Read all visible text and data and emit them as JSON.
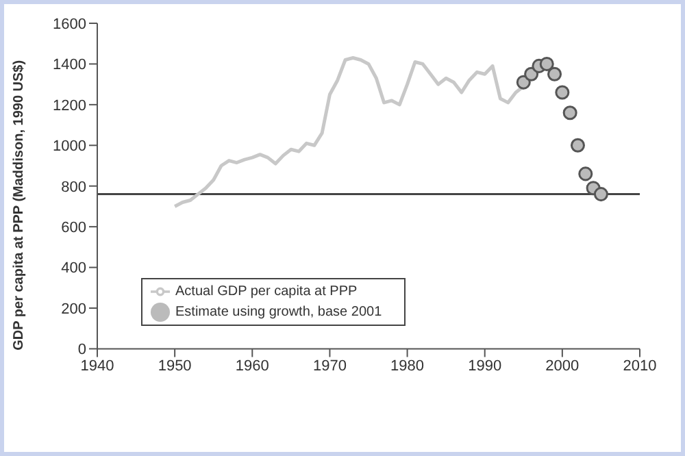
{
  "chart_data": {
    "type": "line",
    "ylabel": "GDP per capita at PPP (Maddison, 1990 US$)",
    "xlim": [
      1940,
      2010
    ],
    "xticks": [
      1940,
      1950,
      1960,
      1970,
      1980,
      1990,
      2000,
      2010
    ],
    "ylim": [
      0,
      1600
    ],
    "yticks": [
      0,
      200,
      400,
      600,
      800,
      1000,
      1200,
      1400,
      1600
    ],
    "grid": false,
    "legend": "bottom left",
    "ref_lines": [
      {
        "axis": "y",
        "value": 760,
        "color": "#444444"
      }
    ],
    "series": [
      {
        "name": "Actual GDP per capita at PPP",
        "type": "line",
        "color": "#c8c8c8",
        "marker": "none",
        "x": [
          1950,
          1951,
          1952,
          1953,
          1954,
          1955,
          1956,
          1957,
          1958,
          1959,
          1960,
          1961,
          1962,
          1963,
          1964,
          1965,
          1966,
          1967,
          1968,
          1969,
          1970,
          1971,
          1972,
          1973,
          1974,
          1975,
          1976,
          1977,
          1978,
          1979,
          1980,
          1981,
          1982,
          1983,
          1984,
          1985,
          1986,
          1987,
          1988,
          1989,
          1990,
          1991,
          1992,
          1993,
          1994,
          1995
        ],
        "values": [
          700,
          720,
          730,
          760,
          790,
          830,
          900,
          925,
          915,
          930,
          940,
          955,
          940,
          910,
          950,
          980,
          970,
          1010,
          1000,
          1060,
          1250,
          1320,
          1420,
          1430,
          1420,
          1400,
          1330,
          1210,
          1220,
          1200,
          1300,
          1410,
          1400,
          1350,
          1300,
          1330,
          1310,
          1260,
          1320,
          1360,
          1350,
          1390,
          1230,
          1210,
          1260,
          1290
        ]
      },
      {
        "name": "Estimate using growth, base 2001",
        "type": "scatter",
        "color": "#555555",
        "marker": "circle",
        "x": [
          1995,
          1996,
          1997,
          1998,
          1999,
          2000,
          2001,
          2002,
          2003,
          2004,
          2005
        ],
        "values": [
          1310,
          1350,
          1390,
          1400,
          1350,
          1260,
          1160,
          1000,
          860,
          790,
          760
        ]
      }
    ]
  }
}
